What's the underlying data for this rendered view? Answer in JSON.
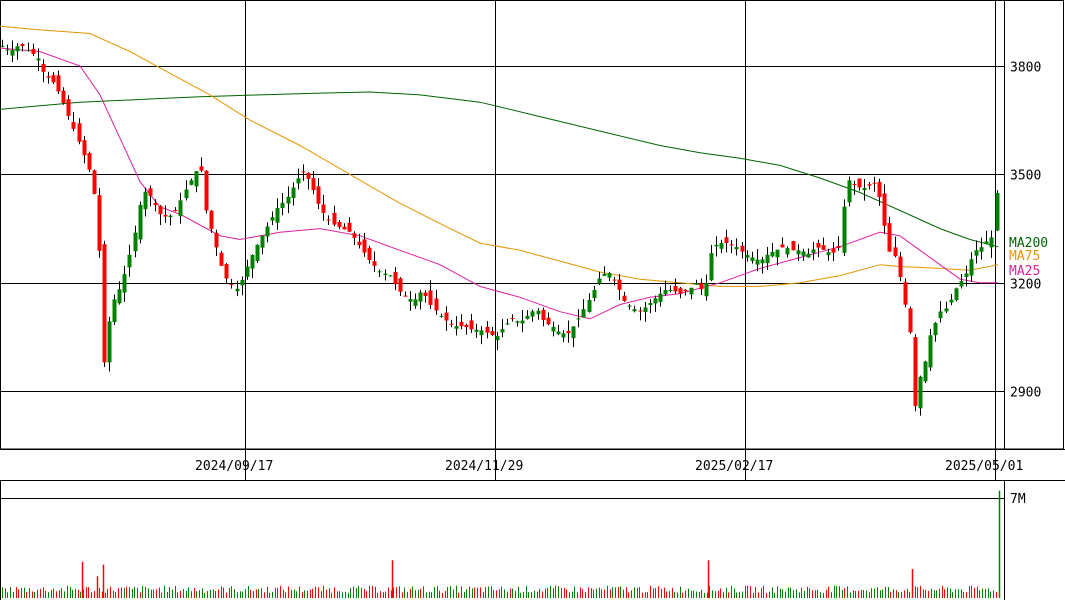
{
  "chart_data": [
    {
      "type": "candlestick",
      "title": "",
      "y_range": [
        2740,
        3980
      ],
      "y_ticks": [
        2900,
        3200,
        3500,
        3800
      ],
      "x_tick_labels": [
        "2024/09/17",
        "2024/11/29",
        "2025/02/17",
        "2025/05/01"
      ],
      "grid": true,
      "legend": [
        {
          "label": "MA200",
          "color": "#006400"
        },
        {
          "label": "MA75",
          "color": "#e69500"
        },
        {
          "label": "MA25",
          "color": "#dd1fa0"
        }
      ],
      "colors": {
        "up": "#008000",
        "down": "#ff0000"
      },
      "close_path": [
        [
          0,
          3860
        ],
        [
          10,
          3840
        ],
        [
          20,
          3860
        ],
        [
          30,
          3840
        ],
        [
          38,
          3820
        ],
        [
          44,
          3775
        ],
        [
          52,
          3760
        ],
        [
          60,
          3720
        ],
        [
          70,
          3650
        ],
        [
          80,
          3580
        ],
        [
          88,
          3520
        ],
        [
          93,
          3470
        ],
        [
          98,
          3320
        ],
        [
          102,
          3180
        ],
        [
          105,
          2880
        ],
        [
          110,
          3140
        ],
        [
          116,
          3160
        ],
        [
          122,
          3200
        ],
        [
          128,
          3260
        ],
        [
          134,
          3330
        ],
        [
          140,
          3420
        ],
        [
          146,
          3460
        ],
        [
          152,
          3430
        ],
        [
          160,
          3390
        ],
        [
          168,
          3380
        ],
        [
          176,
          3400
        ],
        [
          184,
          3450
        ],
        [
          192,
          3490
        ],
        [
          200,
          3530
        ],
        [
          206,
          3400
        ],
        [
          212,
          3340
        ],
        [
          218,
          3280
        ],
        [
          224,
          3220
        ],
        [
          230,
          3200
        ],
        [
          238,
          3180
        ],
        [
          246,
          3240
        ],
        [
          254,
          3290
        ],
        [
          262,
          3330
        ],
        [
          270,
          3370
        ],
        [
          278,
          3410
        ],
        [
          286,
          3430
        ],
        [
          294,
          3470
        ],
        [
          302,
          3510
        ],
        [
          310,
          3480
        ],
        [
          318,
          3420
        ],
        [
          326,
          3380
        ],
        [
          334,
          3360
        ],
        [
          342,
          3350
        ],
        [
          350,
          3340
        ],
        [
          360,
          3300
        ],
        [
          370,
          3260
        ],
        [
          380,
          3230
        ],
        [
          390,
          3220
        ],
        [
          398,
          3180
        ],
        [
          406,
          3160
        ],
        [
          414,
          3150
        ],
        [
          422,
          3180
        ],
        [
          430,
          3140
        ],
        [
          440,
          3110
        ],
        [
          448,
          3090
        ],
        [
          456,
          3080
        ],
        [
          464,
          3080
        ],
        [
          472,
          3070
        ],
        [
          480,
          3070
        ],
        [
          488,
          3060
        ],
        [
          496,
          3050
        ],
        [
          504,
          3080
        ],
        [
          512,
          3100
        ],
        [
          520,
          3090
        ],
        [
          528,
          3110
        ],
        [
          536,
          3130
        ],
        [
          544,
          3090
        ],
        [
          552,
          3080
        ],
        [
          560,
          3060
        ],
        [
          568,
          3060
        ],
        [
          576,
          3090
        ],
        [
          584,
          3130
        ],
        [
          592,
          3170
        ],
        [
          600,
          3220
        ],
        [
          608,
          3230
        ],
        [
          616,
          3200
        ],
        [
          624,
          3150
        ],
        [
          632,
          3130
        ],
        [
          640,
          3120
        ],
        [
          648,
          3140
        ],
        [
          656,
          3160
        ],
        [
          664,
          3180
        ],
        [
          672,
          3180
        ],
        [
          680,
          3170
        ],
        [
          688,
          3180
        ],
        [
          696,
          3200
        ],
        [
          704,
          3170
        ],
        [
          712,
          3300
        ],
        [
          720,
          3310
        ],
        [
          728,
          3310
        ],
        [
          736,
          3300
        ],
        [
          744,
          3280
        ],
        [
          752,
          3270
        ],
        [
          760,
          3260
        ],
        [
          768,
          3280
        ],
        [
          776,
          3290
        ],
        [
          784,
          3300
        ],
        [
          792,
          3290
        ],
        [
          800,
          3290
        ],
        [
          808,
          3280
        ],
        [
          816,
          3300
        ],
        [
          824,
          3290
        ],
        [
          832,
          3280
        ],
        [
          840,
          3300
        ],
        [
          846,
          3490
        ],
        [
          854,
          3470
        ],
        [
          862,
          3460
        ],
        [
          870,
          3470
        ],
        [
          876,
          3480
        ],
        [
          882,
          3400
        ],
        [
          888,
          3290
        ],
        [
          896,
          3270
        ],
        [
          904,
          3150
        ],
        [
          910,
          3060
        ],
        [
          914,
          2830
        ],
        [
          918,
          2960
        ],
        [
          922,
          2920
        ],
        [
          928,
          3040
        ],
        [
          934,
          3080
        ],
        [
          940,
          3120
        ],
        [
          946,
          3130
        ],
        [
          952,
          3160
        ],
        [
          958,
          3200
        ],
        [
          964,
          3210
        ],
        [
          970,
          3260
        ],
        [
          976,
          3290
        ],
        [
          982,
          3300
        ],
        [
          988,
          3320
        ],
        [
          994,
          3330
        ],
        [
          998,
          3520
        ]
      ],
      "ma200": [
        [
          0,
          3680
        ],
        [
          40,
          3690
        ],
        [
          80,
          3700
        ],
        [
          120,
          3705
        ],
        [
          160,
          3710
        ],
        [
          200,
          3715
        ],
        [
          260,
          3720
        ],
        [
          320,
          3725
        ],
        [
          370,
          3728
        ],
        [
          420,
          3720
        ],
        [
          480,
          3700
        ],
        [
          540,
          3660
        ],
        [
          600,
          3620
        ],
        [
          660,
          3580
        ],
        [
          700,
          3560
        ],
        [
          740,
          3545
        ],
        [
          780,
          3525
        ],
        [
          820,
          3490
        ],
        [
          860,
          3450
        ],
        [
          900,
          3400
        ],
        [
          940,
          3350
        ],
        [
          970,
          3320
        ],
        [
          998,
          3300
        ]
      ],
      "ma75": [
        [
          0,
          3910
        ],
        [
          40,
          3900
        ],
        [
          90,
          3890
        ],
        [
          130,
          3840
        ],
        [
          170,
          3780
        ],
        [
          210,
          3720
        ],
        [
          250,
          3650
        ],
        [
          300,
          3580
        ],
        [
          350,
          3500
        ],
        [
          400,
          3420
        ],
        [
          450,
          3350
        ],
        [
          480,
          3310
        ],
        [
          520,
          3290
        ],
        [
          560,
          3260
        ],
        [
          600,
          3230
        ],
        [
          640,
          3210
        ],
        [
          680,
          3200
        ],
        [
          720,
          3190
        ],
        [
          760,
          3190
        ],
        [
          800,
          3200
        ],
        [
          840,
          3220
        ],
        [
          880,
          3250
        ],
        [
          900,
          3245
        ],
        [
          940,
          3240
        ],
        [
          970,
          3235
        ],
        [
          998,
          3250
        ]
      ],
      "ma25": [
        [
          0,
          3850
        ],
        [
          40,
          3840
        ],
        [
          80,
          3800
        ],
        [
          100,
          3720
        ],
        [
          120,
          3600
        ],
        [
          140,
          3480
        ],
        [
          160,
          3410
        ],
        [
          180,
          3390
        ],
        [
          200,
          3360
        ],
        [
          220,
          3330
        ],
        [
          240,
          3320
        ],
        [
          280,
          3340
        ],
        [
          320,
          3350
        ],
        [
          360,
          3330
        ],
        [
          400,
          3290
        ],
        [
          440,
          3250
        ],
        [
          480,
          3190
        ],
        [
          520,
          3160
        ],
        [
          560,
          3120
        ],
        [
          590,
          3100
        ],
        [
          620,
          3140
        ],
        [
          650,
          3160
        ],
        [
          680,
          3170
        ],
        [
          720,
          3200
        ],
        [
          760,
          3240
        ],
        [
          800,
          3270
        ],
        [
          840,
          3300
        ],
        [
          880,
          3340
        ],
        [
          900,
          3330
        ],
        [
          920,
          3290
        ],
        [
          940,
          3250
        ],
        [
          960,
          3210
        ],
        [
          980,
          3200
        ],
        [
          998,
          3200
        ]
      ],
      "volume": {
        "y_ticks": [
          7
        ],
        "unit": "M",
        "spikes": [
          [
            82,
            2.5
          ],
          [
            97,
            1.5
          ],
          [
            103,
            2.3
          ],
          [
            392,
            2.6
          ],
          [
            708,
            2.6
          ],
          [
            912,
            2.0
          ],
          [
            999,
            7.4
          ]
        ]
      }
    }
  ]
}
